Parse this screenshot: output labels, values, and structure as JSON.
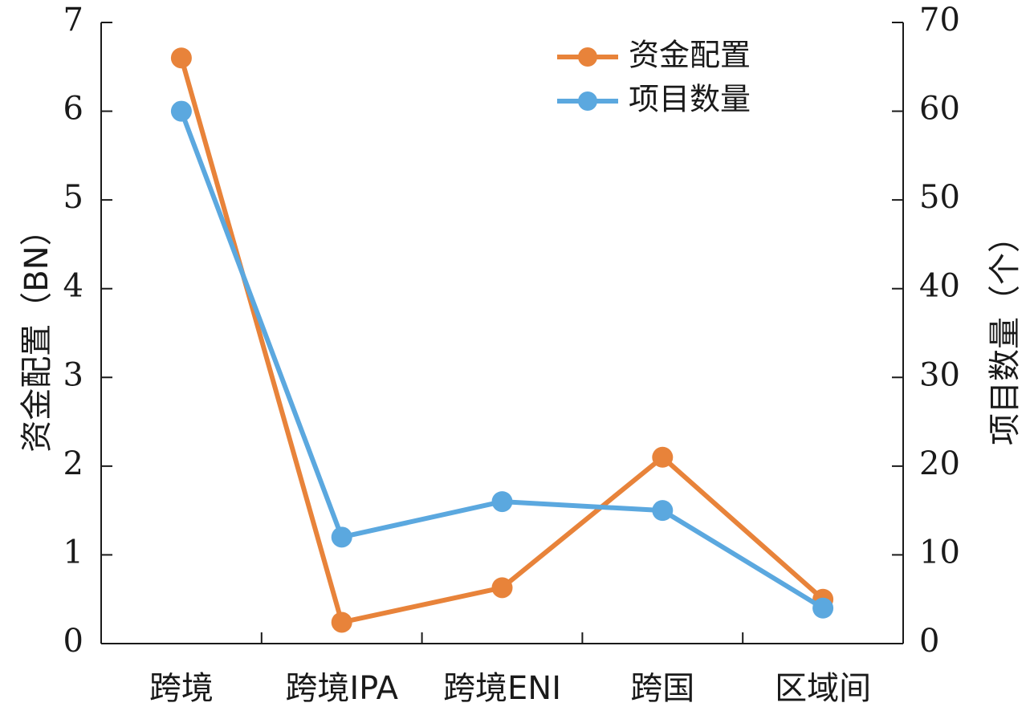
{
  "chart_data": {
    "type": "line",
    "categories": [
      "跨境",
      "跨境IPA",
      "跨境ENI",
      "跨国",
      "区域间"
    ],
    "series": [
      {
        "name": "资金配置",
        "axis": "left",
        "color": "#E8833A",
        "values": [
          6.6,
          0.24,
          0.63,
          2.1,
          0.5
        ]
      },
      {
        "name": "项目数量",
        "axis": "right",
        "color": "#5BA8DF",
        "values": [
          60,
          12,
          16,
          15,
          4
        ]
      }
    ],
    "y_left": {
      "label": "资金配置（BN）",
      "range": [
        0,
        7
      ],
      "ticks": [
        "0",
        "1",
        "2",
        "3",
        "4",
        "5",
        "6",
        "7"
      ]
    },
    "y_right": {
      "label": "项目数量（个）",
      "range": [
        0,
        70
      ],
      "ticks": [
        "0",
        "10",
        "20",
        "30",
        "40",
        "50",
        "60",
        "70"
      ]
    },
    "legend": {
      "position": "top-right"
    },
    "grid": false
  }
}
